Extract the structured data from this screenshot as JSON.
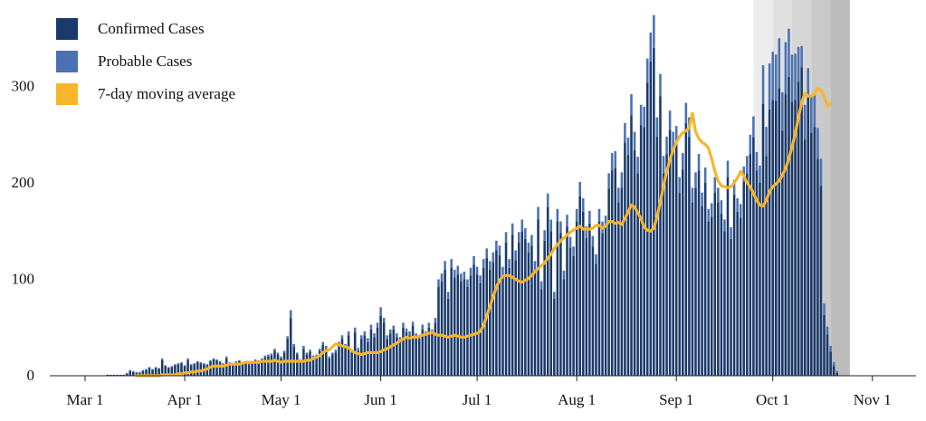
{
  "chart_data": {
    "type": "bar",
    "title": "",
    "xlabel": "",
    "ylabel": "",
    "ylim": [
      0,
      380
    ],
    "y_ticks": [
      0,
      100,
      200,
      300
    ],
    "y_tick_labels": [
      "0",
      "100",
      "200",
      "300"
    ],
    "x_tick_labels": [
      "Mar 1",
      "Apr 1",
      "May 1",
      "Jun 1",
      "Jul 1",
      "Aug 1",
      "Sep 1",
      "Oct 1",
      "Nov 1"
    ],
    "x_tick_days": [
      0,
      31,
      61,
      92,
      122,
      153,
      184,
      214,
      245
    ],
    "first_bar_day": 1,
    "confirmed_values": [
      0,
      0,
      0,
      0,
      0,
      0,
      1,
      1,
      1,
      1,
      1,
      1,
      2,
      5,
      4,
      3,
      3,
      5,
      6,
      8,
      6,
      8,
      7,
      16,
      10,
      8,
      9,
      11,
      12,
      13,
      10,
      16,
      11,
      12,
      14,
      13,
      12,
      11,
      15,
      17,
      16,
      14,
      12,
      18,
      13,
      12,
      14,
      15,
      13,
      14,
      12,
      14,
      16,
      15,
      17,
      19,
      20,
      21,
      26,
      22,
      18,
      24,
      38,
      60,
      30,
      22,
      15,
      28,
      22,
      25,
      19,
      20,
      26,
      32,
      28,
      18,
      22,
      24,
      32,
      38,
      30,
      42,
      24,
      45,
      26,
      38,
      42,
      35,
      48,
      40,
      50,
      62,
      55,
      38,
      44,
      48,
      40,
      36,
      50,
      45,
      42,
      52,
      40,
      38,
      48,
      42,
      50,
      44,
      55,
      92,
      98,
      110,
      80,
      112,
      102,
      105,
      98,
      100,
      92,
      104,
      115,
      105,
      96,
      112,
      122,
      110,
      118,
      130,
      125,
      104,
      138,
      112,
      146,
      120,
      138,
      150,
      142,
      128,
      135,
      110,
      162,
      90,
      140,
      175,
      150,
      80,
      160,
      148,
      100,
      155,
      133,
      124,
      160,
      186,
      170,
      143,
      158,
      134,
      116,
      160,
      148,
      154,
      194,
      213,
      215,
      180,
      195,
      242,
      229,
      270,
      234,
      210,
      260,
      258,
      304,
      326,
      340,
      248,
      290,
      210,
      230,
      255,
      234,
      240,
      190,
      214,
      262,
      248,
      180,
      195,
      213,
      176,
      200,
      160,
      165,
      190,
      180,
      168,
      150,
      206,
      142,
      188,
      170,
      164,
      201,
      210,
      230,
      247,
      213,
      200,
      282,
      228,
      276,
      286,
      285,
      298,
      254,
      292,
      310,
      284,
      286,
      305,
      320,
      245,
      289,
      252,
      258,
      225,
      197,
      63,
      43,
      25,
      10,
      3
    ],
    "probable_values": [
      0,
      0,
      0,
      0,
      0,
      0,
      0,
      0,
      0,
      0,
      0,
      0,
      1,
      1,
      1,
      1,
      1,
      1,
      1,
      1,
      1,
      1,
      1,
      2,
      1,
      1,
      1,
      1,
      1,
      1,
      1,
      2,
      1,
      1,
      1,
      1,
      1,
      1,
      1,
      1,
      1,
      1,
      1,
      2,
      1,
      1,
      1,
      1,
      1,
      1,
      1,
      1,
      1,
      1,
      1,
      2,
      2,
      2,
      2,
      2,
      2,
      2,
      3,
      8,
      3,
      2,
      2,
      3,
      2,
      2,
      2,
      2,
      2,
      3,
      3,
      2,
      2,
      3,
      3,
      4,
      3,
      4,
      3,
      5,
      3,
      4,
      4,
      4,
      5,
      4,
      5,
      9,
      5,
      4,
      4,
      4,
      4,
      4,
      5,
      4,
      4,
      4,
      4,
      4,
      5,
      4,
      5,
      4,
      5,
      8,
      8,
      9,
      7,
      9,
      8,
      9,
      8,
      8,
      8,
      8,
      9,
      8,
      8,
      9,
      10,
      9,
      10,
      10,
      10,
      9,
      11,
      9,
      12,
      10,
      11,
      12,
      11,
      10,
      11,
      9,
      13,
      8,
      11,
      14,
      12,
      7,
      13,
      12,
      9,
      12,
      11,
      10,
      13,
      15,
      14,
      12,
      13,
      11,
      10,
      13,
      12,
      12,
      16,
      18,
      18,
      15,
      16,
      20,
      18,
      22,
      19,
      17,
      21,
      21,
      25,
      30,
      34,
      20,
      23,
      18,
      18,
      20,
      19,
      19,
      16,
      17,
      21,
      20,
      15,
      16,
      17,
      14,
      16,
      13,
      14,
      16,
      15,
      14,
      12,
      17,
      12,
      15,
      14,
      14,
      16,
      18,
      20,
      22,
      19,
      18,
      40,
      30,
      48,
      50,
      48,
      52,
      40,
      54,
      50,
      49,
      48,
      36,
      22,
      36,
      30,
      38,
      35,
      32,
      28,
      12,
      8,
      6,
      4,
      2
    ],
    "moving_average": [
      0,
      0,
      0,
      0,
      0,
      0,
      0,
      0,
      1,
      1,
      1,
      1,
      1,
      2,
      2,
      3,
      3,
      4,
      4,
      5,
      5,
      6,
      7,
      9,
      10,
      10,
      10,
      10,
      11,
      12,
      12,
      12,
      12,
      13,
      14,
      14,
      14,
      14,
      14,
      15,
      15,
      15,
      15,
      16,
      15,
      14,
      15,
      15,
      15,
      15,
      15,
      15,
      15,
      16,
      16,
      18,
      19,
      21,
      24,
      26,
      27,
      30,
      33,
      32,
      31,
      30,
      29,
      26,
      24,
      23,
      22,
      23,
      24,
      24,
      24,
      24,
      25,
      27,
      28,
      30,
      32,
      34,
      36,
      38,
      40,
      39,
      40,
      40,
      41,
      42,
      43,
      44,
      45,
      43,
      42,
      42,
      41,
      40,
      41,
      42,
      41,
      40,
      40,
      41,
      42,
      43,
      44,
      46,
      52,
      62,
      72,
      82,
      92,
      99,
      103,
      104,
      104,
      102,
      100,
      98,
      97,
      99,
      101,
      104,
      108,
      111,
      114,
      117,
      122,
      126,
      132,
      136,
      140,
      143,
      146,
      149,
      151,
      153,
      155,
      152,
      152,
      152,
      153,
      156,
      156,
      153,
      155,
      160,
      160,
      158,
      159,
      157,
      163,
      170,
      177,
      175,
      169,
      163,
      154,
      151,
      150,
      153,
      165,
      180,
      197,
      212,
      224,
      234,
      242,
      248,
      252,
      254,
      257,
      272,
      253,
      246,
      242,
      240,
      236,
      225,
      212,
      202,
      197,
      196,
      195,
      196,
      200,
      205,
      212,
      207,
      200,
      196,
      189,
      182,
      177,
      176,
      182,
      191,
      196,
      199,
      202,
      208,
      215,
      225,
      237,
      251,
      268,
      283,
      293,
      290,
      290,
      292,
      298,
      296,
      290,
      280,
      282
    ],
    "moving_average_end_day": 232,
    "shaded_bands": [
      {
        "start_day": 208,
        "end_day": 214,
        "color": "#ececec"
      },
      {
        "start_day": 214,
        "end_day": 220,
        "color": "#e0e0e0"
      },
      {
        "start_day": 220,
        "end_day": 226,
        "color": "#d5d5d5"
      },
      {
        "start_day": 226,
        "end_day": 232,
        "color": "#c9c9c9"
      },
      {
        "start_day": 232,
        "end_day": 238,
        "color": "#bcbcbc"
      }
    ],
    "series": [
      {
        "name": "Confirmed Cases",
        "color": "#1b3a6b"
      },
      {
        "name": "Probable Cases",
        "color": "#4a72b2"
      },
      {
        "name": "7-day moving average",
        "color": "#f6b52b"
      }
    ],
    "legend_position": "top-left",
    "grid": false
  }
}
